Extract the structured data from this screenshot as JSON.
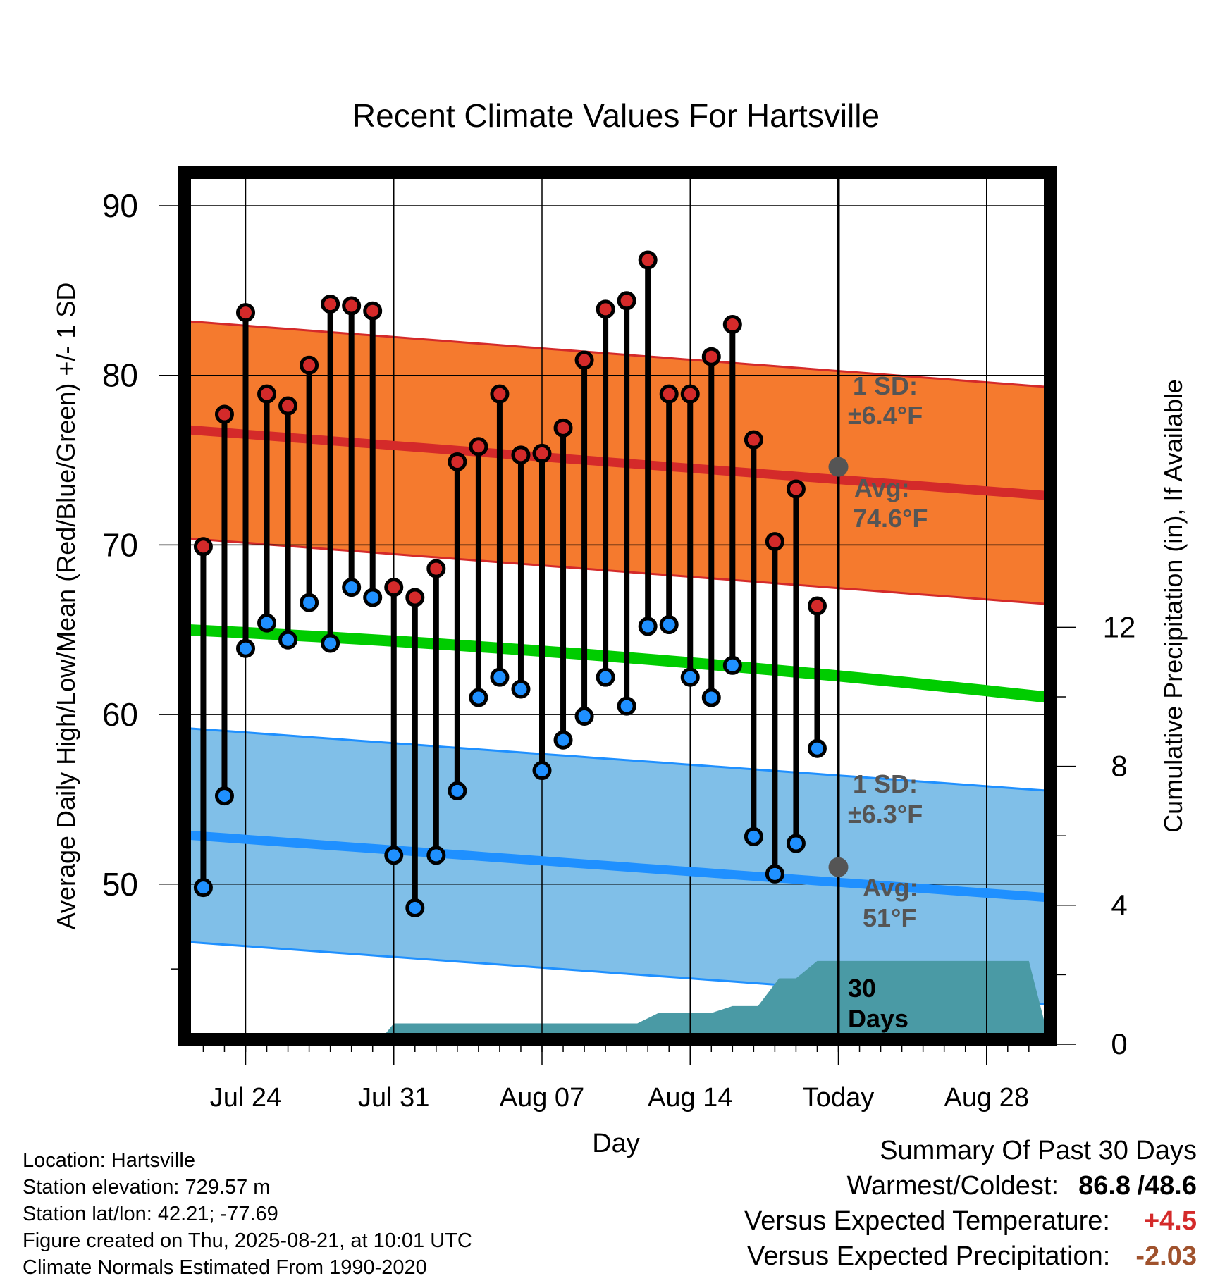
{
  "chart_data": {
    "type": "line",
    "title": "Recent Climate Values For Hartsville",
    "xlabel": "Day",
    "ylabel": "Average Daily High/Low/Mean (Red/Blue/Green) +/- 1 SD",
    "y2label": "Cumulative Precipitation (in), If Available",
    "ylim": [
      40,
      92
    ],
    "y2lim": [
      0,
      24
    ],
    "y_ticks": [
      "50",
      "60",
      "70",
      "80",
      "90"
    ],
    "y2_ticks": [
      "0",
      "4",
      "8",
      "12"
    ],
    "x_ticks": [
      {
        "day": 3,
        "label": "Jul 24"
      },
      {
        "day": 10,
        "label": "Jul 31"
      },
      {
        "day": 17,
        "label": "Aug 07"
      },
      {
        "day": 24,
        "label": "Aug 14"
      },
      {
        "day": 31,
        "label": "Today"
      },
      {
        "day": 38,
        "label": "Aug 28"
      }
    ],
    "xlim": [
      -0.7,
      40.2
    ],
    "today_day": 31,
    "series": [
      {
        "name": "High",
        "color": "#d42a2a",
        "days": [
          1,
          2,
          3,
          4,
          5,
          6,
          7,
          8,
          9,
          10,
          11,
          12,
          13,
          14,
          15,
          16,
          17,
          18,
          19,
          20,
          21,
          22,
          23,
          24,
          25,
          26,
          27,
          28,
          29,
          30
        ],
        "values": [
          69.9,
          77.7,
          83.7,
          78.9,
          78.2,
          80.6,
          84.2,
          84.1,
          83.8,
          67.5,
          66.9,
          68.6,
          74.9,
          75.8,
          78.9,
          75.3,
          75.4,
          76.9,
          80.9,
          83.9,
          84.4,
          86.8,
          78.9,
          78.9,
          81.1,
          83.0,
          76.2,
          70.2,
          73.3,
          66.4
        ]
      },
      {
        "name": "Low",
        "color": "#1f90ff",
        "days": [
          1,
          2,
          3,
          4,
          5,
          6,
          7,
          8,
          9,
          10,
          11,
          12,
          13,
          14,
          15,
          16,
          17,
          18,
          19,
          20,
          21,
          22,
          23,
          24,
          25,
          26,
          27,
          28,
          29,
          30
        ],
        "values": [
          49.8,
          55.2,
          63.9,
          65.4,
          64.4,
          66.6,
          64.2,
          67.5,
          66.9,
          51.7,
          48.6,
          51.7,
          55.5,
          61.0,
          62.2,
          61.5,
          56.7,
          58.5,
          59.9,
          62.2,
          60.5,
          65.2,
          65.3,
          62.2,
          61.0,
          62.9,
          52.8,
          50.6,
          52.4,
          58.0
        ]
      },
      {
        "name": "Mean",
        "color": "#00cc00",
        "values_start_end": [
          65.0,
          61.0
        ]
      }
    ],
    "normals": {
      "high": {
        "start": 76.8,
        "mid": 74.6,
        "end": 72.9,
        "sd": 6.4
      },
      "low": {
        "start": 52.9,
        "mid": 51.0,
        "end": 49.2,
        "sd": 6.3
      }
    },
    "precipitation": {
      "color": "#4a9aa5",
      "days": [
        9.2,
        10,
        16,
        21.5,
        22.5,
        25,
        26,
        27.2,
        28.2,
        29,
        30,
        31,
        40
      ],
      "values": [
        0,
        0.6,
        0.6,
        0.6,
        0.9,
        0.9,
        1.1,
        1.1,
        1.9,
        1.9,
        2.4,
        2.4,
        2.4
      ]
    },
    "annotations": {
      "high_sd": {
        "line1": "1 SD:",
        "line2": "±6.4°F"
      },
      "high_avg": {
        "line1": "Avg:",
        "line2": "74.6°F"
      },
      "low_sd": {
        "line1": "1 SD:",
        "line2": "±6.3°F"
      },
      "low_avg": {
        "line1": "Avg:",
        "line2": "51°F"
      },
      "precip": {
        "line1": "30",
        "line2": "Days"
      }
    },
    "colors": {
      "high_band": "#f57a2e",
      "high_edge": "#d42a2a",
      "low_band": "#80bfe8",
      "low_edge": "#1f90ff",
      "annotation": "#555555"
    }
  },
  "info": {
    "location": "Location: Hartsville",
    "elevation": "Station elevation: 729.57 m",
    "latlon": "Station lat/lon: 42.21; -77.69",
    "created": "Figure created on Thu, 2025-08-21, at 10:01 UTC",
    "normals": "Climate Normals Estimated From 1990-2020"
  },
  "summary": {
    "heading": "Summary Of Past 30 Days",
    "warmest_label": "Warmest/Coldest:",
    "warmest_high": "86.8",
    "slash": "/",
    "warmest_low": "48.6",
    "temp_label": "Versus Expected Temperature:",
    "temp_value": "+4.5",
    "temp_color": "#d42a2a",
    "precip_label": "Versus Expected Precipitation:",
    "precip_value": "-2.03",
    "precip_color": "#a0522d"
  }
}
